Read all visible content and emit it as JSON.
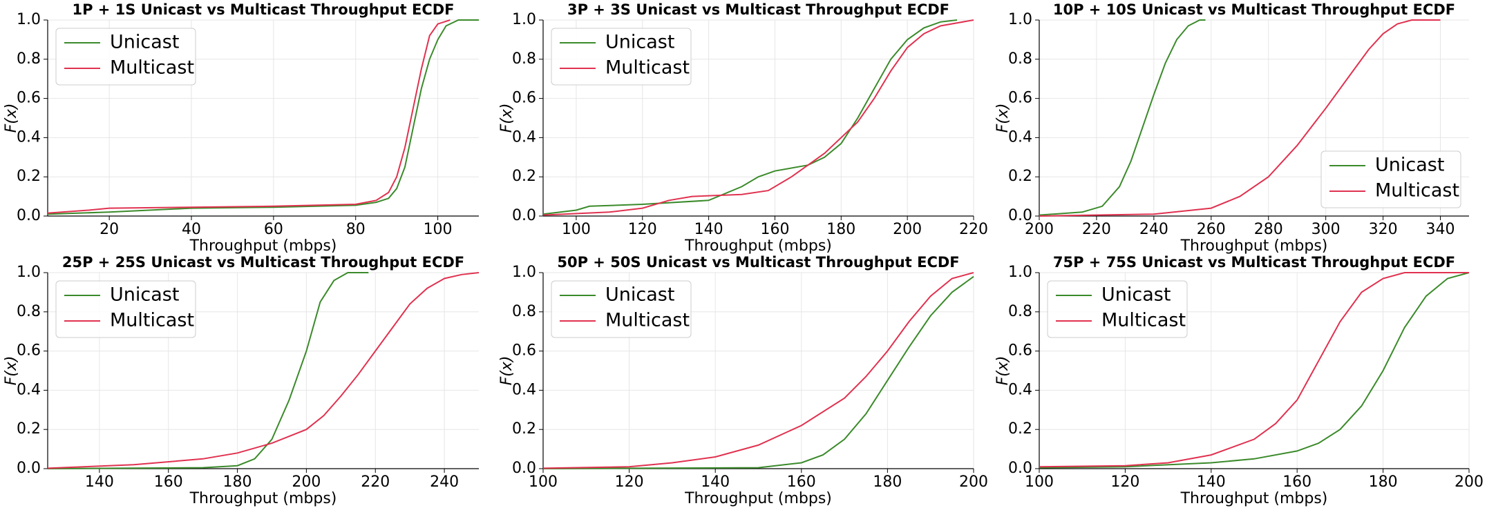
{
  "chart_data": [
    {
      "type": "line",
      "title": "1P + 1S Unicast vs Multicast Throughput ECDF",
      "xlabel": "Throughput (mbps)",
      "ylabel": "F(x)",
      "xlim": [
        5,
        110
      ],
      "xticks": [
        20,
        40,
        60,
        80,
        100
      ],
      "ylim": [
        0,
        1
      ],
      "yticks": [
        0.0,
        0.2,
        0.4,
        0.6,
        0.8,
        1.0
      ],
      "grid": true,
      "legend": "upper left",
      "series": [
        {
          "name": "Unicast",
          "color": "#3a8a2a",
          "x": [
            5,
            20,
            40,
            60,
            80,
            85,
            88,
            90,
            92,
            94,
            96,
            98,
            100,
            102,
            105,
            110
          ],
          "values": [
            0.01,
            0.02,
            0.04,
            0.045,
            0.055,
            0.07,
            0.09,
            0.14,
            0.25,
            0.45,
            0.65,
            0.8,
            0.9,
            0.97,
            1.0,
            1.0
          ]
        },
        {
          "name": "Multicast",
          "color": "#e0314f",
          "x": [
            5,
            15,
            20,
            40,
            60,
            80,
            85,
            88,
            90,
            92,
            94,
            96,
            98,
            100,
            103
          ],
          "values": [
            0.015,
            0.03,
            0.04,
            0.045,
            0.05,
            0.06,
            0.08,
            0.12,
            0.2,
            0.35,
            0.55,
            0.75,
            0.92,
            0.98,
            1.0
          ]
        }
      ]
    },
    {
      "type": "line",
      "title": "3P + 3S Unicast vs Multicast Throughput ECDF",
      "xlabel": "Throughput (mbps)",
      "ylabel": "F(x)",
      "xlim": [
        90,
        220
      ],
      "xticks": [
        100,
        120,
        140,
        160,
        180,
        200,
        220
      ],
      "ylim": [
        0,
        1
      ],
      "yticks": [
        0.0,
        0.2,
        0.4,
        0.6,
        0.8,
        1.0
      ],
      "grid": true,
      "legend": "upper left",
      "series": [
        {
          "name": "Unicast",
          "color": "#3a8a2a",
          "x": [
            90,
            100,
            104,
            120,
            140,
            150,
            155,
            160,
            170,
            175,
            180,
            185,
            190,
            195,
            200,
            205,
            210,
            215
          ],
          "values": [
            0.01,
            0.03,
            0.05,
            0.06,
            0.08,
            0.15,
            0.2,
            0.23,
            0.26,
            0.3,
            0.37,
            0.5,
            0.65,
            0.8,
            0.9,
            0.96,
            0.99,
            1.0
          ]
        },
        {
          "name": "Multicast",
          "color": "#e0314f",
          "x": [
            90,
            110,
            120,
            128,
            135,
            150,
            158,
            165,
            175,
            185,
            190,
            195,
            200,
            205,
            210,
            220
          ],
          "values": [
            0.005,
            0.02,
            0.04,
            0.08,
            0.1,
            0.11,
            0.13,
            0.2,
            0.32,
            0.48,
            0.6,
            0.74,
            0.86,
            0.93,
            0.97,
            1.0
          ]
        }
      ]
    },
    {
      "type": "line",
      "title": "10P + 10S Unicast vs Multicast Throughput ECDF",
      "xlabel": "Throughput (mbps)",
      "ylabel": "F(x)",
      "xlim": [
        200,
        350
      ],
      "xticks": [
        200,
        220,
        240,
        260,
        280,
        300,
        320,
        340
      ],
      "ylim": [
        0,
        1
      ],
      "yticks": [
        0.0,
        0.2,
        0.4,
        0.6,
        0.8,
        1.0
      ],
      "grid": true,
      "legend": "lower right",
      "series": [
        {
          "name": "Unicast",
          "color": "#3a8a2a",
          "x": [
            200,
            215,
            222,
            228,
            232,
            236,
            240,
            244,
            248,
            252,
            256,
            258
          ],
          "values": [
            0.005,
            0.02,
            0.05,
            0.15,
            0.28,
            0.45,
            0.62,
            0.78,
            0.9,
            0.97,
            1.0,
            1.0
          ]
        },
        {
          "name": "Multicast",
          "color": "#e0314f",
          "x": [
            200,
            240,
            260,
            270,
            280,
            290,
            300,
            310,
            315,
            320,
            325,
            330,
            340
          ],
          "values": [
            0,
            0.01,
            0.04,
            0.1,
            0.2,
            0.36,
            0.55,
            0.75,
            0.85,
            0.93,
            0.98,
            1.0,
            1.0
          ]
        }
      ]
    },
    {
      "type": "line",
      "title": "25P + 25S Unicast vs Multicast Throughput ECDF",
      "xlabel": "Throughput (mbps)",
      "ylabel": "F(x)",
      "xlim": [
        125,
        250
      ],
      "xticks": [
        140,
        160,
        180,
        200,
        220,
        240
      ],
      "ylim": [
        0,
        1
      ],
      "yticks": [
        0.0,
        0.2,
        0.4,
        0.6,
        0.8,
        1.0
      ],
      "grid": true,
      "legend": "upper left",
      "series": [
        {
          "name": "Unicast",
          "color": "#3a8a2a",
          "x": [
            125,
            170,
            180,
            185,
            190,
            195,
            200,
            204,
            208,
            212,
            218
          ],
          "values": [
            0,
            0.005,
            0.015,
            0.05,
            0.15,
            0.35,
            0.6,
            0.85,
            0.96,
            1.0,
            1.0
          ]
        },
        {
          "name": "Multicast",
          "color": "#e0314f",
          "x": [
            125,
            150,
            170,
            180,
            190,
            200,
            205,
            210,
            215,
            220,
            225,
            230,
            235,
            240,
            245,
            250
          ],
          "values": [
            0.002,
            0.02,
            0.05,
            0.08,
            0.13,
            0.2,
            0.27,
            0.37,
            0.48,
            0.6,
            0.72,
            0.84,
            0.92,
            0.97,
            0.99,
            1.0
          ]
        }
      ]
    },
    {
      "type": "line",
      "title": "50P + 50S Unicast vs Multicast Throughput ECDF",
      "xlabel": "Throughput (mbps)",
      "ylabel": "F(x)",
      "xlim": [
        100,
        200
      ],
      "xticks": [
        100,
        120,
        140,
        160,
        180,
        200
      ],
      "ylim": [
        0,
        1
      ],
      "yticks": [
        0.0,
        0.2,
        0.4,
        0.6,
        0.8,
        1.0
      ],
      "grid": true,
      "legend": "upper left",
      "series": [
        {
          "name": "Unicast",
          "color": "#3a8a2a",
          "x": [
            100,
            150,
            160,
            165,
            170,
            175,
            180,
            185,
            190,
            195,
            200
          ],
          "values": [
            0,
            0.005,
            0.03,
            0.07,
            0.15,
            0.28,
            0.45,
            0.62,
            0.78,
            0.9,
            0.98
          ]
        },
        {
          "name": "Multicast",
          "color": "#e0314f",
          "x": [
            100,
            120,
            130,
            140,
            150,
            160,
            170,
            175,
            180,
            185,
            190,
            195,
            200
          ],
          "values": [
            0.002,
            0.01,
            0.03,
            0.06,
            0.12,
            0.22,
            0.36,
            0.47,
            0.6,
            0.75,
            0.88,
            0.97,
            1.0
          ]
        }
      ]
    },
    {
      "type": "line",
      "title": "75P + 75S Unicast vs Multicast Throughput ECDF",
      "xlabel": "Throughput (mbps)",
      "ylabel": "F(x)",
      "xlim": [
        100,
        200
      ],
      "xticks": [
        100,
        120,
        140,
        160,
        180,
        200
      ],
      "ylim": [
        0,
        1
      ],
      "yticks": [
        0.0,
        0.2,
        0.4,
        0.6,
        0.8,
        1.0
      ],
      "grid": true,
      "legend": "upper left",
      "series": [
        {
          "name": "Unicast",
          "color": "#3a8a2a",
          "x": [
            100,
            120,
            140,
            150,
            160,
            165,
            170,
            175,
            180,
            185,
            190,
            195,
            200
          ],
          "values": [
            0.005,
            0.01,
            0.03,
            0.05,
            0.09,
            0.13,
            0.2,
            0.32,
            0.5,
            0.72,
            0.88,
            0.97,
            1.0
          ]
        },
        {
          "name": "Multicast",
          "color": "#e0314f",
          "x": [
            100,
            120,
            130,
            140,
            150,
            155,
            160,
            165,
            170,
            175,
            180,
            185,
            200
          ],
          "values": [
            0.01,
            0.015,
            0.03,
            0.07,
            0.15,
            0.23,
            0.35,
            0.55,
            0.75,
            0.9,
            0.97,
            1.0,
            1.0
          ]
        }
      ]
    }
  ]
}
